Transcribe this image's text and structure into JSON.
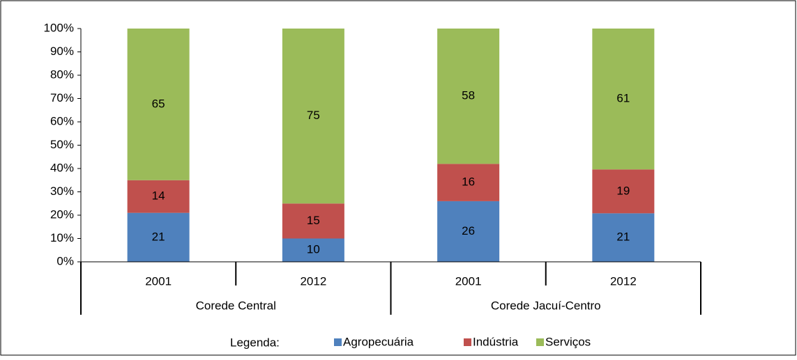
{
  "chart_data": {
    "type": "bar",
    "stacking": "percent",
    "groups": [
      {
        "name": "Corede Central",
        "categories": [
          "2001",
          "2012"
        ]
      },
      {
        "name": "Corede Jacuí-Centro",
        "categories": [
          "2001",
          "2012"
        ]
      }
    ],
    "series": [
      {
        "name": "Agropecuária",
        "color": "#4f81bd",
        "values": [
          21,
          10,
          26,
          21
        ]
      },
      {
        "name": "Indústria",
        "color": "#c0504d",
        "values": [
          14,
          15,
          16,
          19
        ]
      },
      {
        "name": "Serviços",
        "color": "#9bbb59",
        "values": [
          65,
          75,
          58,
          61
        ]
      }
    ],
    "ylim": [
      0,
      100
    ],
    "yticks": [
      {
        "value": 0,
        "label": "0%"
      },
      {
        "value": 10,
        "label": "10%"
      },
      {
        "value": 20,
        "label": "20%"
      },
      {
        "value": 30,
        "label": "30%"
      },
      {
        "value": 40,
        "label": "40%"
      },
      {
        "value": 50,
        "label": "50%"
      },
      {
        "value": 60,
        "label": "60%"
      },
      {
        "value": 70,
        "label": "70%"
      },
      {
        "value": 80,
        "label": "80%"
      },
      {
        "value": 90,
        "label": "90%"
      },
      {
        "value": 100,
        "label": "100%"
      }
    ],
    "legend_title": "Legenda:",
    "legend": "bottom"
  }
}
